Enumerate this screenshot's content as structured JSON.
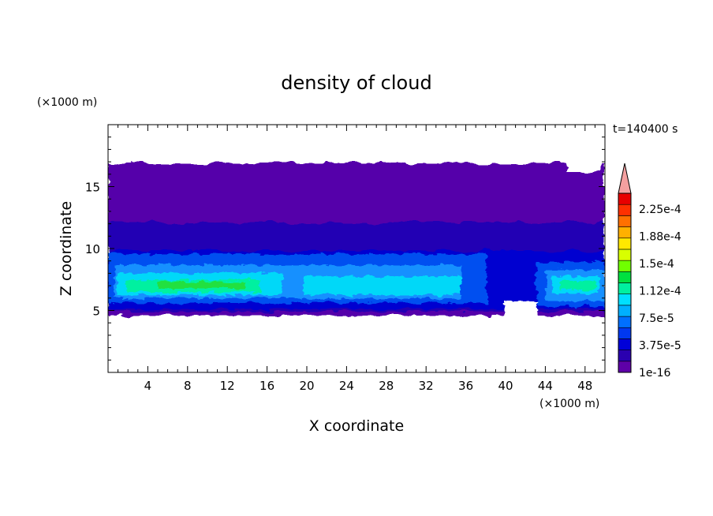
{
  "chart_data": {
    "type": "heatmap",
    "title": "density of cloud",
    "time_label": "t=140400 s",
    "xlabel": "X coordinate",
    "ylabel": "Z coordinate",
    "x_unit": "(×1000 m)",
    "y_unit": "(×1000 m)",
    "xlim": [
      0,
      50
    ],
    "ylim": [
      0,
      20
    ],
    "xticks": [
      4,
      8,
      12,
      16,
      20,
      24,
      28,
      32,
      36,
      40,
      44,
      48
    ],
    "yticks": [
      5,
      10,
      15
    ],
    "colorbar": {
      "labels": [
        "2.25e-4",
        "1.88e-4",
        "1.5e-4",
        "1.12e-4",
        "7.5e-5",
        "3.75e-5",
        "1e-16"
      ],
      "colors": [
        "#5e00a8",
        "#2a00b0",
        "#0000d8",
        "#0038f0",
        "#0070ff",
        "#00b0ff",
        "#00e0ff",
        "#00f0a0",
        "#00e040",
        "#70ff00",
        "#d8ff00",
        "#ffe800",
        "#ffb000",
        "#ff7000",
        "#ff3000",
        "#e80000"
      ],
      "extend_color": "#f4a0a0"
    },
    "cloud_layers": {
      "top_km": 16.5,
      "base_km": 4.8,
      "dense_core_km": [
        5.5,
        8.5
      ]
    }
  }
}
